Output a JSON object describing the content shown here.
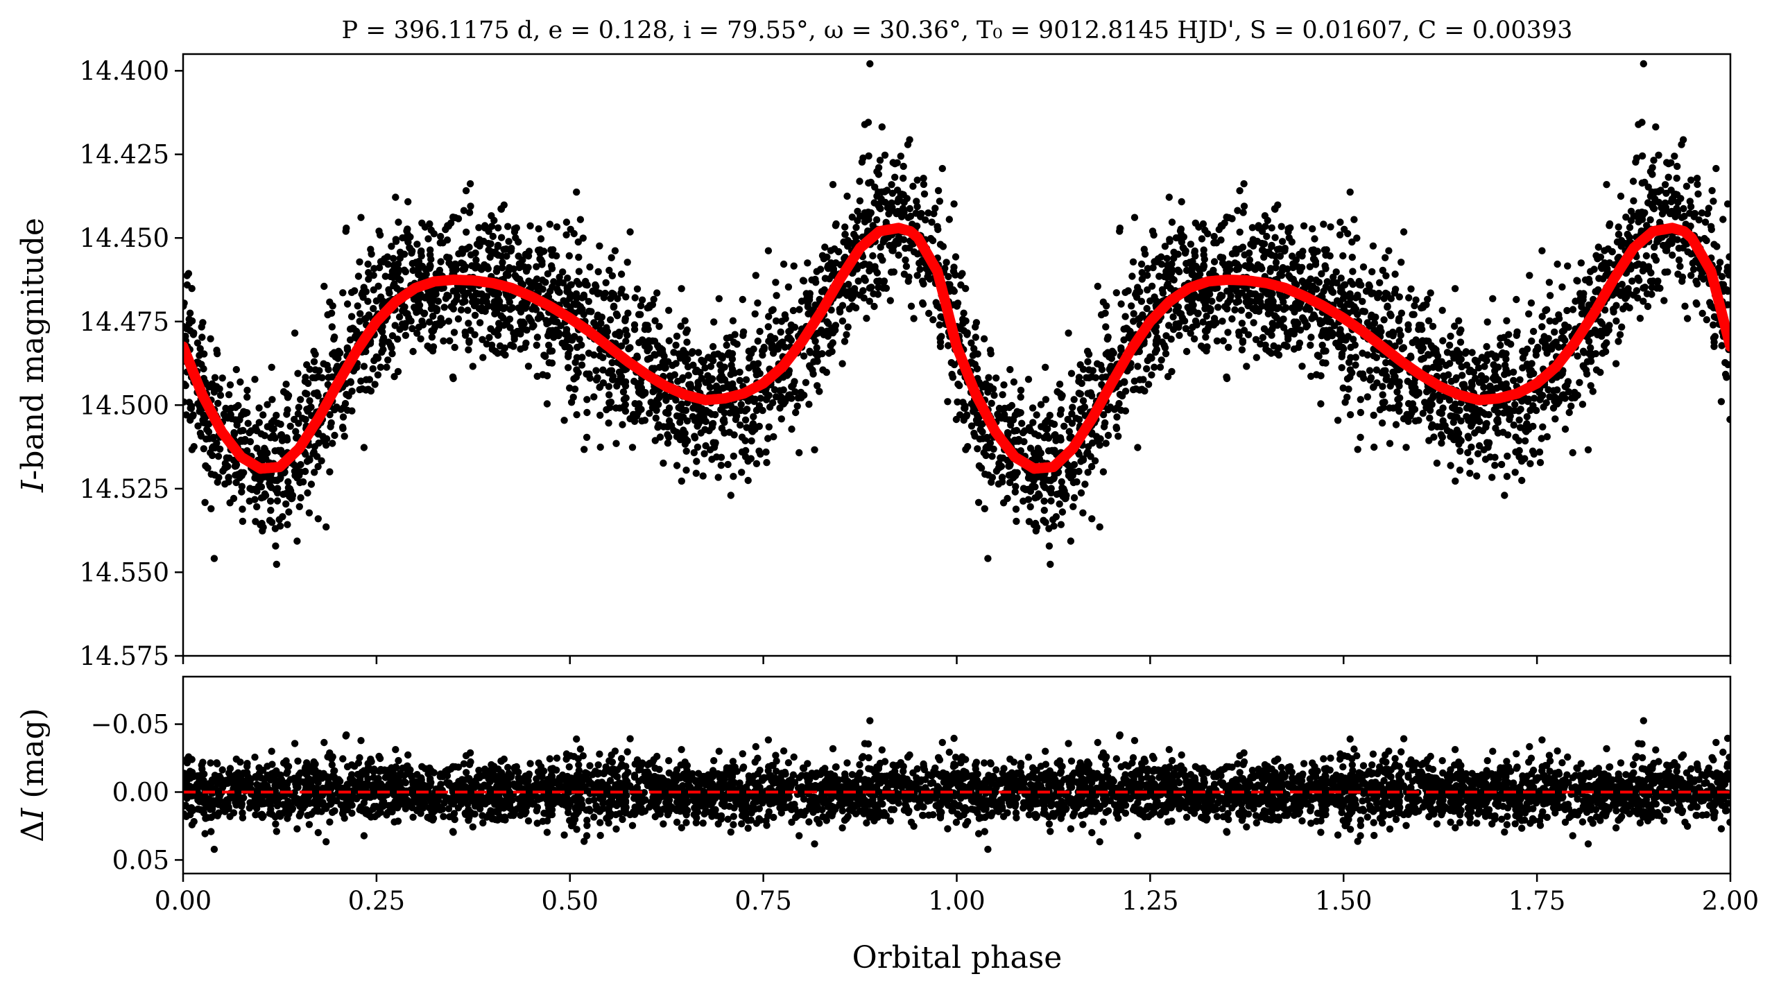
{
  "chart_data": [
    {
      "type": "scatter",
      "panel": "top",
      "title": "P = 396.1175 d, e = 0.128, i = 79.55°, ω = 30.36°, T₀ = 9012.8145 HJD', S = 0.01607, C = 0.00393",
      "xlabel": "",
      "ylabel": "I-band magnitude",
      "xlim": [
        0.0,
        2.0
      ],
      "ylim": [
        14.575,
        14.395
      ],
      "y_inverted": true,
      "yticks": [
        14.4,
        14.425,
        14.45,
        14.475,
        14.5,
        14.525,
        14.55,
        14.575
      ],
      "ytick_labels": [
        "14.400",
        "14.425",
        "14.450",
        "14.475",
        "14.500",
        "14.525",
        "14.550",
        "14.575"
      ],
      "xticks": [
        0.0,
        0.25,
        0.5,
        0.75,
        1.0,
        1.25,
        1.5,
        1.75,
        2.0
      ],
      "grid": false,
      "series": [
        {
          "kind": "observations",
          "color": "#000000",
          "description_values": "~5000 points scattered about the model, phase-folded and repeated over two cycles",
          "scatter_sigma_mag": 0.011
        },
        {
          "kind": "model",
          "color": "#ff0000",
          "x": [
            0.0,
            0.025,
            0.05,
            0.075,
            0.1,
            0.125,
            0.15,
            0.175,
            0.2,
            0.225,
            0.25,
            0.275,
            0.3,
            0.325,
            0.35,
            0.375,
            0.4,
            0.425,
            0.45,
            0.475,
            0.5,
            0.525,
            0.55,
            0.575,
            0.6,
            0.625,
            0.65,
            0.675,
            0.7,
            0.725,
            0.75,
            0.775,
            0.8,
            0.825,
            0.85,
            0.875,
            0.9,
            0.925,
            0.94,
            0.95,
            0.975,
            1.0,
            1.025,
            1.05,
            1.075,
            1.1,
            1.125,
            1.15,
            1.175,
            1.2,
            1.225,
            1.25,
            1.275,
            1.3,
            1.325,
            1.35,
            1.375,
            1.4,
            1.425,
            1.45,
            1.475,
            1.5,
            1.525,
            1.55,
            1.575,
            1.6,
            1.625,
            1.65,
            1.675,
            1.7,
            1.725,
            1.75,
            1.775,
            1.8,
            1.825,
            1.85,
            1.875,
            1.9,
            1.925,
            1.94,
            1.95,
            1.975,
            2.0
          ],
          "y": [
            14.4825,
            14.497,
            14.508,
            14.5155,
            14.519,
            14.5185,
            14.513,
            14.504,
            14.4935,
            14.4835,
            14.475,
            14.469,
            14.465,
            14.463,
            14.4625,
            14.4627,
            14.4635,
            14.465,
            14.4675,
            14.4705,
            14.474,
            14.478,
            14.4825,
            14.487,
            14.491,
            14.4945,
            14.497,
            14.4985,
            14.498,
            14.4965,
            14.4935,
            14.4885,
            14.481,
            14.472,
            14.462,
            14.453,
            14.448,
            14.447,
            14.448,
            14.45,
            14.46,
            14.4825,
            14.497,
            14.508,
            14.5155,
            14.519,
            14.5185,
            14.513,
            14.504,
            14.4935,
            14.4835,
            14.475,
            14.469,
            14.465,
            14.463,
            14.4625,
            14.4627,
            14.4635,
            14.465,
            14.4675,
            14.4705,
            14.474,
            14.478,
            14.4825,
            14.487,
            14.491,
            14.4945,
            14.497,
            14.4985,
            14.498,
            14.4965,
            14.4935,
            14.4885,
            14.481,
            14.472,
            14.462,
            14.453,
            14.448,
            14.447,
            14.448,
            14.45,
            14.46,
            14.4825
          ]
        }
      ]
    },
    {
      "type": "scatter",
      "panel": "bottom",
      "xlabel": "Orbital phase",
      "ylabel": "ΔI (mag)",
      "xlim": [
        0.0,
        2.0
      ],
      "ylim": [
        0.06,
        -0.085
      ],
      "y_inverted": true,
      "yticks": [
        -0.05,
        0.0,
        0.05
      ],
      "ytick_labels": [
        "−0.05",
        "0.00",
        "0.05"
      ],
      "xticks": [
        0.0,
        0.25,
        0.5,
        0.75,
        1.0,
        1.25,
        1.5,
        1.75,
        2.0
      ],
      "xtick_labels": [
        "0.00",
        "0.25",
        "0.50",
        "0.75",
        "1.00",
        "1.25",
        "1.50",
        "1.75",
        "2.00"
      ],
      "grid": false,
      "series": [
        {
          "kind": "residuals",
          "color": "#000000",
          "scatter_sigma_mag": 0.011
        },
        {
          "kind": "zero-line",
          "color": "#ff0000",
          "style": "dashed",
          "y": 0.0
        }
      ]
    }
  ],
  "colors": {
    "points": "#000000",
    "model": "#ff0000",
    "axes": "#000000"
  }
}
